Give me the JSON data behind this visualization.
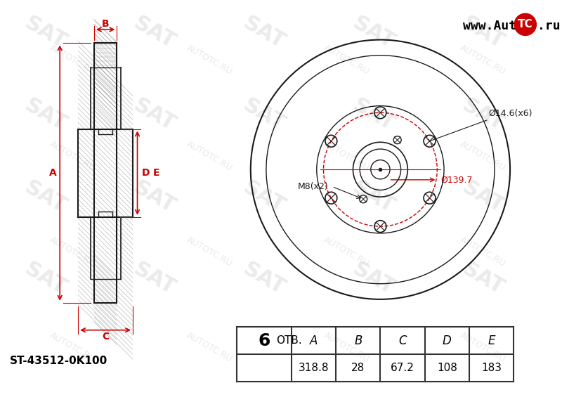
{
  "bg_color": "#f0f0f0",
  "white": "#ffffff",
  "black": "#000000",
  "red": "#cc0000",
  "gray_watermark": "#cccccc",
  "part_number": "ST-43512-0K100",
  "bolt_count": "6",
  "otv_label": "ОТВ.",
  "dim_A": "318.8",
  "dim_B": "28",
  "dim_C": "67.2",
  "dim_D": "108",
  "dim_E": "183",
  "label_A": "A",
  "label_B": "B",
  "label_C": "C",
  "label_D": "D",
  "label_E": "E",
  "annotation_bolt_hole": "Ø14.6(x6)",
  "annotation_pcd": "Ø139.7",
  "annotation_thread": "M8(x2)",
  "website": "www.AutoTC.ru",
  "line_color": "#1a1a1a",
  "table_border": "#333333"
}
